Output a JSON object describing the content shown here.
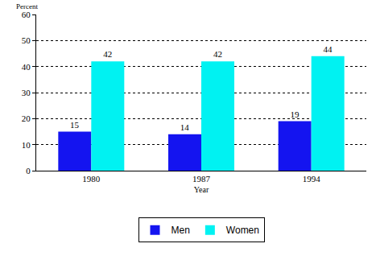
{
  "chart_data": {
    "type": "bar",
    "y_label": "Percent",
    "x_label": "Year",
    "categories": [
      "1980",
      "1987",
      "1994"
    ],
    "series": [
      {
        "name": "Men",
        "color": "#1414f0",
        "values": [
          15,
          14,
          19
        ]
      },
      {
        "name": "Women",
        "color": "#00f2f2",
        "values": [
          42,
          42,
          44
        ]
      }
    ],
    "ylim": [
      0,
      60
    ],
    "yticks": [
      0,
      10,
      20,
      30,
      40,
      50,
      60
    ],
    "grid": true,
    "legend": "bottom",
    "data_labels": true
  }
}
